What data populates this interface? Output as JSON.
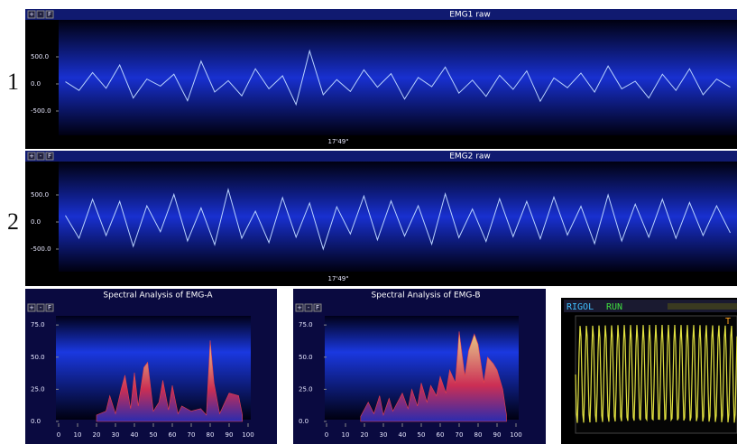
{
  "row_labels": [
    "1",
    "2"
  ],
  "controls": [
    "+",
    "-",
    "F"
  ],
  "chart_data": [
    {
      "type": "line",
      "title": "EMG1 raw",
      "x_label": "17'49\"",
      "color": "#b8d2ff",
      "categories": [
        null,
        null,
        null,
        null,
        null,
        null,
        null,
        null,
        null,
        null,
        null,
        null,
        null,
        null,
        null,
        null,
        null,
        null,
        null,
        null,
        null,
        null,
        null,
        null,
        null,
        null,
        null,
        null,
        null,
        null,
        null,
        null,
        null,
        null,
        null,
        null,
        null,
        null,
        null,
        null,
        null,
        null,
        null,
        null,
        null,
        null,
        null,
        null,
        null,
        null
      ],
      "values": [
        40,
        -120,
        210,
        -80,
        350,
        -260,
        90,
        -40,
        180,
        -310,
        420,
        -150,
        60,
        -220,
        280,
        -90,
        150,
        -380,
        610,
        -200,
        80,
        -140,
        260,
        -60,
        190,
        -280,
        120,
        -50,
        310,
        -170,
        70,
        -230,
        160,
        -100,
        240,
        -320,
        110,
        -70,
        200,
        -150,
        330,
        -90,
        50,
        -260,
        180,
        -120,
        280,
        -200,
        90,
        -60
      ],
      "ylim": [
        -1000,
        1000
      ],
      "yticks": [
        {
          "value": -500,
          "label": "-500.0"
        },
        {
          "value": 0,
          "label": "0.0"
        },
        {
          "value": 500,
          "label": "500.0"
        }
      ]
    },
    {
      "type": "line",
      "title": "EMG2 raw",
      "x_label": "17'49\"",
      "color": "#b8d2ff",
      "categories": [
        null,
        null,
        null,
        null,
        null,
        null,
        null,
        null,
        null,
        null,
        null,
        null,
        null,
        null,
        null,
        null,
        null,
        null,
        null,
        null,
        null,
        null,
        null,
        null,
        null,
        null,
        null,
        null,
        null,
        null,
        null,
        null,
        null,
        null,
        null,
        null,
        null,
        null,
        null,
        null,
        null,
        null,
        null,
        null,
        null,
        null,
        null,
        null,
        null,
        null
      ],
      "values": [
        120,
        -300,
        420,
        -250,
        380,
        -450,
        300,
        -180,
        510,
        -350,
        260,
        -420,
        600,
        -300,
        200,
        -380,
        450,
        -280,
        350,
        -500,
        280,
        -220,
        480,
        -330,
        390,
        -260,
        300,
        -410,
        520,
        -290,
        240,
        -360,
        430,
        -270,
        380,
        -310,
        460,
        -240,
        290,
        -400,
        500,
        -350,
        330,
        -280,
        420,
        -300,
        360,
        -250,
        300,
        -200
      ],
      "ylim": [
        -1000,
        1000
      ],
      "yticks": [
        {
          "value": -500,
          "label": "-500.0"
        },
        {
          "value": 0,
          "label": "0.0"
        },
        {
          "value": 500,
          "label": "500.0"
        }
      ]
    },
    {
      "type": "area",
      "title": "Spectral Analysis of EMG-A",
      "color": "#e8404a",
      "x": [
        20,
        25,
        27,
        30,
        33,
        35,
        38,
        40,
        42,
        45,
        47,
        50,
        53,
        55,
        58,
        60,
        63,
        65,
        70,
        75,
        78,
        80,
        82,
        85,
        90,
        95,
        97
      ],
      "values": [
        5,
        8,
        20,
        6,
        25,
        36,
        10,
        38,
        12,
        42,
        46,
        8,
        15,
        32,
        9,
        28,
        6,
        12,
        8,
        10,
        5,
        63,
        30,
        6,
        22,
        20,
        5
      ],
      "xlim": [
        0,
        100
      ],
      "xticks": [
        0,
        10,
        20,
        30,
        40,
        50,
        60,
        70,
        80,
        90,
        100
      ],
      "ylim": [
        0,
        80
      ],
      "yticks": [
        {
          "value": 0,
          "label": "0.0"
        },
        {
          "value": 25,
          "label": "25.0"
        },
        {
          "value": 50,
          "label": "50.0"
        },
        {
          "value": 75,
          "label": "75.0"
        }
      ]
    },
    {
      "type": "area",
      "title": "Spectral Analysis of EMG-B",
      "color": "#e8404a",
      "x": [
        18,
        22,
        25,
        28,
        30,
        33,
        35,
        40,
        43,
        45,
        48,
        50,
        53,
        55,
        58,
        60,
        63,
        65,
        68,
        70,
        73,
        75,
        78,
        80,
        83,
        85,
        88,
        90,
        93,
        95
      ],
      "values": [
        4,
        15,
        6,
        20,
        5,
        18,
        8,
        22,
        10,
        25,
        12,
        30,
        15,
        28,
        20,
        35,
        22,
        40,
        30,
        70,
        35,
        55,
        68,
        60,
        30,
        50,
        45,
        40,
        25,
        5
      ],
      "xlim": [
        0,
        100
      ],
      "xticks": [
        0,
        10,
        20,
        30,
        40,
        50,
        60,
        70,
        80,
        90,
        100
      ],
      "ylim": [
        0,
        80
      ],
      "yticks": [
        {
          "value": 0,
          "label": "0.0"
        },
        {
          "value": 25,
          "label": "25.0"
        },
        {
          "value": 50,
          "label": "50.0"
        },
        {
          "value": 75,
          "label": "75.0"
        }
      ]
    }
  ],
  "scope": {
    "brand": "RIGOL",
    "status": "RUN",
    "trigger": "T"
  }
}
